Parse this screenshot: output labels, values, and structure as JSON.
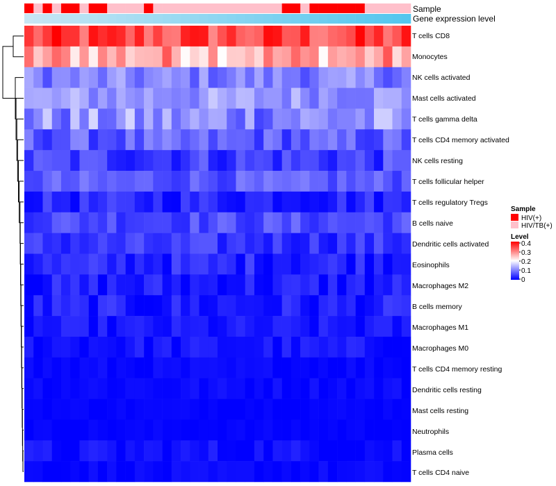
{
  "chart_data": {
    "type": "heatmap",
    "n_columns": 42,
    "annotations": [
      {
        "name": "Sample",
        "label": "Sample"
      },
      {
        "name": "Gene expression level",
        "label": "Gene expression level"
      }
    ],
    "sample_groups": {
      "title": "Sample",
      "entries": [
        {
          "label": "HIV(+)",
          "color": "#ff0000"
        },
        {
          "label": "HIV/TB(+)",
          "color": "#ffc0cb"
        }
      ],
      "assignment": [
        0,
        1,
        0,
        1,
        0,
        0,
        1,
        0,
        0,
        1,
        1,
        1,
        1,
        0,
        1,
        1,
        1,
        1,
        1,
        1,
        1,
        1,
        1,
        1,
        1,
        1,
        1,
        1,
        0,
        0,
        1,
        0,
        0,
        0,
        0,
        0,
        0,
        1,
        1,
        1,
        1,
        1
      ]
    },
    "expression_bar": {
      "color_start": "#c8e6f4",
      "color_end": "#53c6ee"
    },
    "color_scale": {
      "title": "Level",
      "min": 0,
      "max": 0.4,
      "ticks": [
        "0.4",
        "0.3",
        "0.2",
        "0.1",
        "0"
      ],
      "stops": [
        "#0000ff",
        "#ffffff",
        "#ff0000"
      ]
    },
    "rows": [
      "T cells CD8",
      "Monocytes",
      "NK cells activated",
      "Mast cells activated",
      "T cells gamma delta",
      "T cells CD4 memory activated",
      "NK cells resting",
      "T cells follicular helper",
      "T cells regulatory  Tregs",
      "B cells naive",
      "Dendritic cells activated",
      "Eosinophils",
      "Macrophages M2",
      "B cells memory",
      "Macrophages M1",
      "Macrophages M0",
      "T cells CD4 memory resting",
      "Dendritic cells resting",
      "Mast cells resting",
      "Neutrophils",
      "Plasma cells",
      "T cells CD4 naive"
    ],
    "row_means": [
      0.34,
      0.27,
      0.1,
      0.12,
      0.11,
      0.07,
      0.05,
      0.07,
      0.03,
      0.06,
      0.04,
      0.03,
      0.02,
      0.02,
      0.015,
      0.015,
      0.005,
      0.008,
      0.004,
      0.003,
      0.01,
      0.005
    ],
    "row_spread": [
      0.06,
      0.07,
      0.04,
      0.04,
      0.06,
      0.04,
      0.04,
      0.03,
      0.03,
      0.03,
      0.03,
      0.03,
      0.03,
      0.03,
      0.02,
      0.02,
      0.01,
      0.01,
      0.005,
      0.005,
      0.02,
      0.01
    ]
  }
}
